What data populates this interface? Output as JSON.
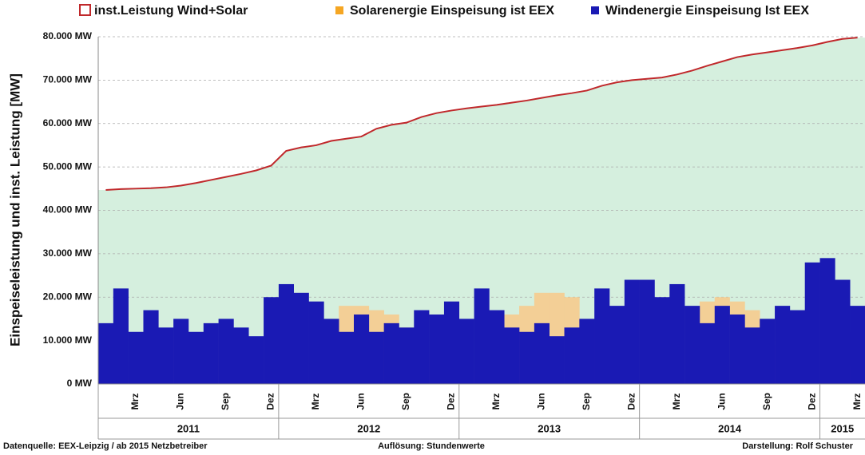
{
  "chart_data": {
    "type": "bar",
    "y_label": "Einspeiseleistung  und  inst. Leistung [MW]",
    "footer": [
      "Datenquelle:  EEX-Leipzig   /  ab 2015 Netzbetreiber",
      "Auflösung: Stundenwerte",
      "Darstellung: Rolf Schuster"
    ],
    "categories": [
      null,
      null,
      "Mrz",
      null,
      null,
      "Jun",
      null,
      null,
      "Sep",
      null,
      null,
      "Dez",
      null,
      null,
      "Mrz",
      null,
      null,
      "Jun",
      null,
      null,
      "Sep",
      null,
      null,
      "Dez",
      null,
      null,
      "Mrz",
      null,
      null,
      "Jun",
      null,
      null,
      "Sep",
      null,
      null,
      "Dez",
      null,
      null,
      "Mrz",
      null,
      null,
      "Jun",
      null,
      null,
      "Sep",
      null,
      null,
      "Dez",
      null,
      null,
      "Mrz"
    ],
    "years": [
      "2011",
      "2012",
      "2013",
      "2014",
      "2015"
    ],
    "series": [
      {
        "name": "inst.Leistung Wind+Solar",
        "type": "line",
        "color": "#c0282b",
        "fill": "#d5efde",
        "values": [
          44700,
          44900,
          45000,
          45100,
          45300,
          45700,
          46300,
          47000,
          47700,
          48400,
          49200,
          50300,
          53700,
          54500,
          55000,
          56000,
          56500,
          57000,
          58800,
          59700,
          60200,
          61500,
          62400,
          63000,
          63500,
          63900,
          64300,
          64800,
          65300,
          65900,
          66500,
          67000,
          67600,
          68700,
          69500,
          70000,
          70300,
          70600,
          71300,
          72200,
          73300,
          74300,
          75300,
          75900,
          76400,
          76900,
          77400,
          78000,
          78800,
          79500,
          79800
        ]
      },
      {
        "name": "Solarenergie Einspeisung ist EEX",
        "type": "bar",
        "color": "#f3cf96",
        "legend_color": "#f5a623",
        "values": [
          500,
          1500,
          5000,
          9000,
          10000,
          11000,
          10000,
          10000,
          7000,
          4000,
          1000,
          300,
          500,
          2500,
          12000,
          14000,
          18000,
          18000,
          17000,
          16000,
          13000,
          7000,
          2000,
          500,
          600,
          3000,
          10000,
          16000,
          18000,
          21000,
          21000,
          20000,
          13000,
          8000,
          2500,
          500,
          1000,
          5000,
          14000,
          17000,
          19000,
          20000,
          19000,
          17000,
          14000,
          9000,
          3000,
          700,
          1000,
          4000,
          12000
        ]
      },
      {
        "name": "Windenergie Einspeisung Ist EEX",
        "type": "bar",
        "color": "#1a1ab4",
        "legend_color": "#1a1ab4",
        "values": [
          14000,
          22000,
          12000,
          17000,
          13000,
          15000,
          12000,
          14000,
          15000,
          13000,
          11000,
          20000,
          23000,
          21000,
          19000,
          15000,
          12000,
          16000,
          12000,
          14000,
          13000,
          17000,
          16000,
          19000,
          15000,
          22000,
          17000,
          13000,
          12000,
          14000,
          11000,
          13000,
          15000,
          22000,
          18000,
          24000,
          24000,
          20000,
          23000,
          18000,
          14000,
          18000,
          16000,
          13000,
          15000,
          18000,
          17000,
          28000,
          29000,
          24000,
          18000
        ]
      }
    ],
    "ylim": [
      0,
      80000
    ],
    "yticks": [
      {
        "value": 0,
        "label": "0 MW"
      },
      {
        "value": 10000,
        "label": "10.000 MW"
      },
      {
        "value": 20000,
        "label": "20.000 MW"
      },
      {
        "value": 30000,
        "label": "30.000 MW"
      },
      {
        "value": 40000,
        "label": "40.000 MW"
      },
      {
        "value": 50000,
        "label": "50.000 MW"
      },
      {
        "value": 60000,
        "label": "60.000 MW"
      },
      {
        "value": 70000,
        "label": "70.000 MW"
      },
      {
        "value": 80000,
        "label": "80.000 MW"
      }
    ],
    "grid": true
  }
}
